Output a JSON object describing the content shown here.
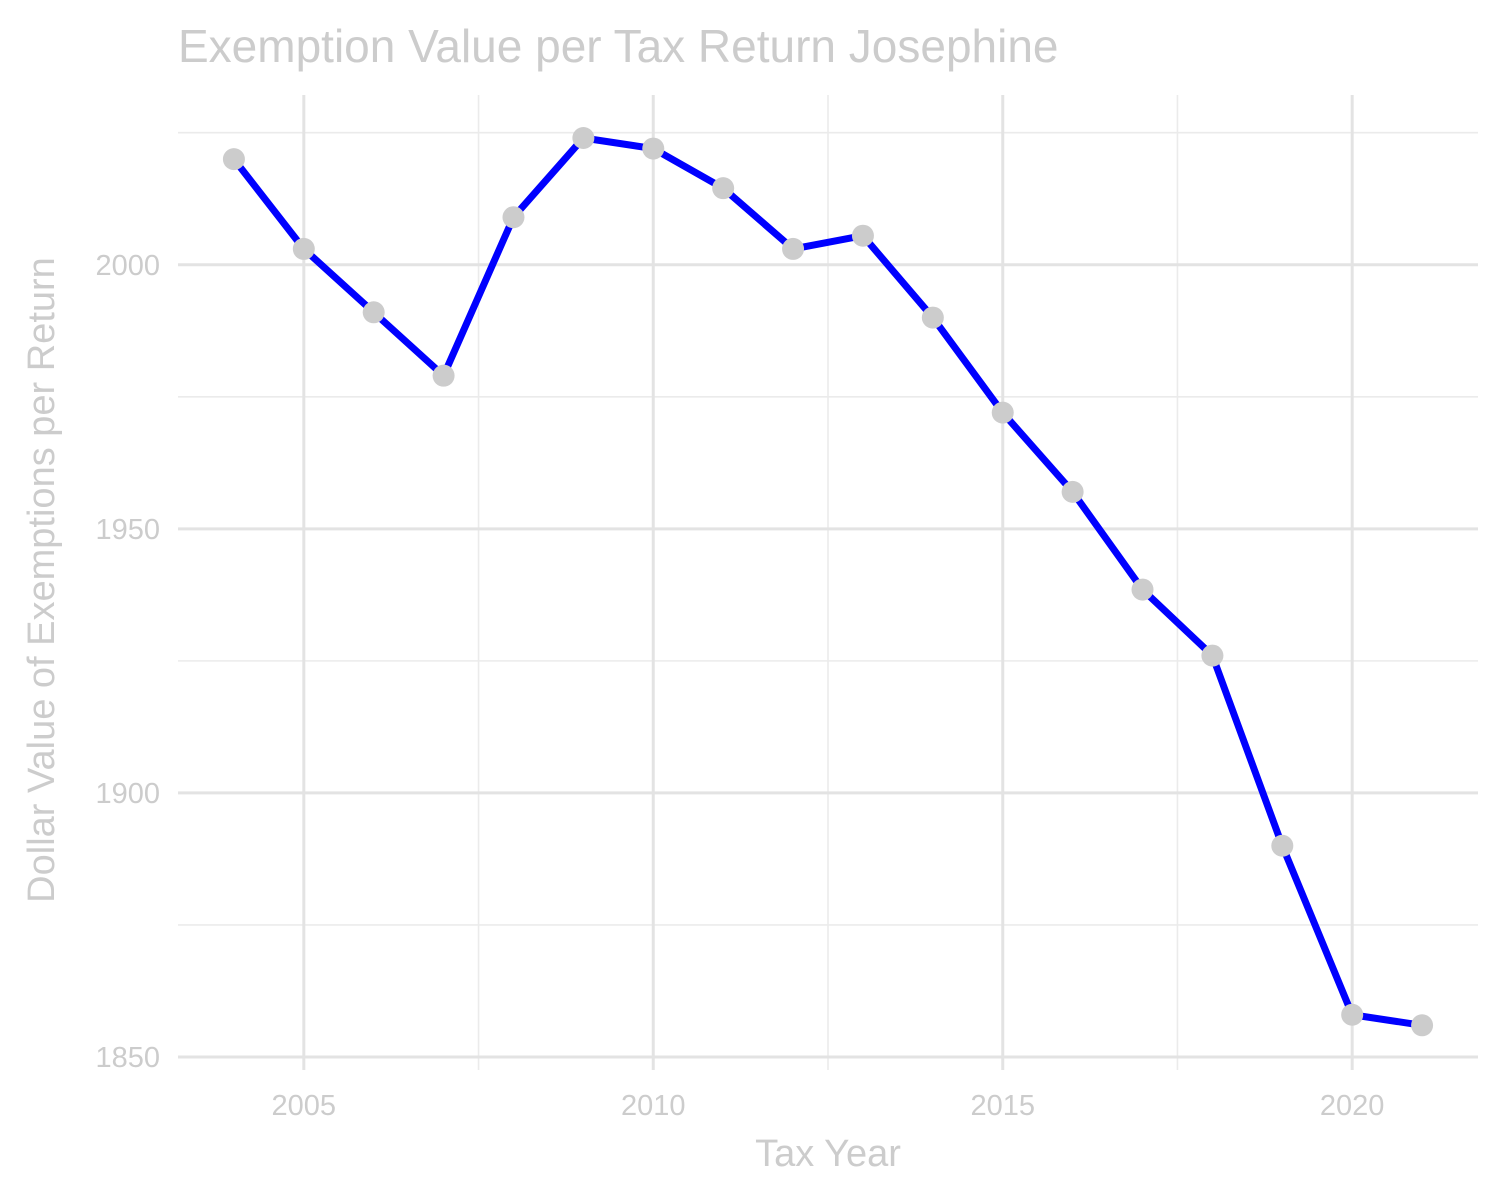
{
  "chart_data": {
    "type": "line",
    "title": "Exemption Value per Tax Return Josephine",
    "xlabel": "Tax Year",
    "ylabel": "Dollar Value of Exemptions per Return",
    "x": [
      2004,
      2005,
      2006,
      2007,
      2008,
      2009,
      2010,
      2011,
      2012,
      2013,
      2014,
      2015,
      2016,
      2017,
      2018,
      2019,
      2020,
      2021
    ],
    "series": [
      {
        "values": [
          2020,
          2003,
          1991,
          1979,
          2009,
          2024,
          2022,
          2014.5,
          2003,
          2005.5,
          1990,
          1972,
          1957,
          1938.5,
          1926,
          1890,
          1858,
          1856
        ]
      }
    ],
    "xlim": [
      2003.2,
      2021.8
    ],
    "ylim": [
      1850,
      2025
    ],
    "x_ticks": [
      2005,
      2010,
      2015,
      2020
    ],
    "x_tick_labels": [
      "2005",
      "2010",
      "2015",
      "2020"
    ],
    "y_ticks": [
      1850,
      1900,
      1950,
      2000
    ],
    "y_tick_labels": [
      "1850",
      "1900",
      "1950",
      "2000"
    ],
    "grid": true,
    "legend": "none",
    "colors": {
      "line": "#0000ff",
      "points": "#cccccc",
      "text": "#cccccc",
      "grid": "#e3e3e3"
    }
  }
}
